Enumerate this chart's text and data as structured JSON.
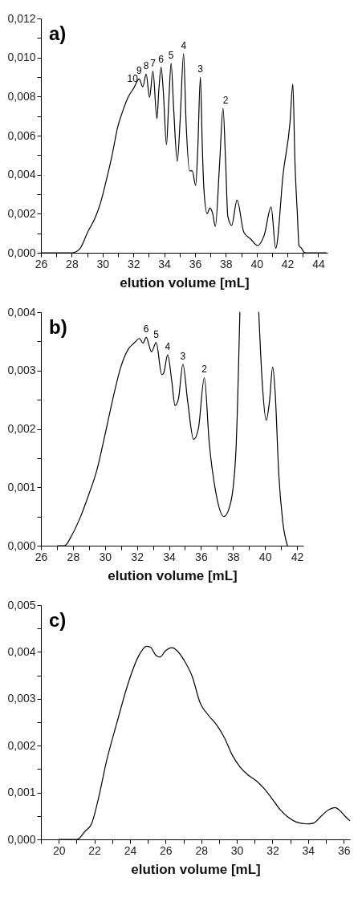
{
  "chart_data": [
    {
      "type": "line",
      "xlabel": "elution volume [mL]",
      "color": "#000000",
      "marker": "none",
      "line_style": "solid",
      "xlim": [
        26,
        44.6
      ],
      "xticks": [
        26,
        {
          "value": 27,
          "label": null
        },
        28,
        {
          "value": 29,
          "label": null
        },
        30,
        {
          "value": 31,
          "label": null
        },
        32,
        {
          "value": 33,
          "label": null
        },
        34,
        {
          "value": 35,
          "label": null
        },
        36,
        {
          "value": 37,
          "label": null
        },
        38,
        {
          "value": 39,
          "label": null
        },
        40,
        {
          "value": 41,
          "label": null
        },
        42,
        {
          "value": 43,
          "label": null
        },
        44
      ],
      "ylim": [
        0,
        0.012
      ],
      "yticks": [
        {
          "value": 0,
          "label": "0,000"
        },
        {
          "value": 0.001,
          "label": null
        },
        {
          "value": 0.002,
          "label": "0,002"
        },
        {
          "value": 0.003,
          "label": null
        },
        {
          "value": 0.004,
          "label": "0,004"
        },
        {
          "value": 0.005,
          "label": null
        },
        {
          "value": 0.006,
          "label": "0,006"
        },
        {
          "value": 0.007,
          "label": null
        },
        {
          "value": 0.008,
          "label": "0,008"
        },
        {
          "value": 0.009,
          "label": null
        },
        {
          "value": 0.01,
          "label": "0,010"
        },
        {
          "value": 0.011,
          "label": null
        },
        {
          "value": 0.012,
          "label": "0,012"
        }
      ],
      "x": [
        26,
        27.8,
        28,
        28.5,
        29.03,
        29.56,
        29.92,
        30.27,
        30.62,
        30.97,
        31.33,
        31.68,
        32.03,
        32.38,
        32.61,
        32.83,
        33.05,
        33.27,
        33.53,
        33.65,
        33.8,
        33.94,
        34.15,
        34.29,
        34.45,
        34.62,
        34.85,
        35.03,
        35.26,
        35.42,
        35.65,
        35.82,
        36.04,
        36.18,
        36.35,
        36.48,
        36.58,
        36.79,
        36.97,
        37.15,
        37.32,
        37.6,
        37.82,
        37.99,
        38.13,
        38.38,
        38.73,
        39.17,
        39.62,
        40.06,
        40.5,
        40.94,
        41.24,
        41.73,
        42.17,
        42.35,
        42.49,
        42.65,
        42.75,
        42.88,
        43.14,
        44.52
      ],
      "values": [
        0,
        0,
        0,
        0.00018,
        0.00105,
        0.00187,
        0.0027,
        0.0038,
        0.005,
        0.0064,
        0.0073,
        0.008,
        0.00844,
        0.0089,
        0.0085,
        0.00915,
        0.00796,
        0.0093,
        0.00687,
        0.0083,
        0.0095,
        0.0083,
        0.00553,
        0.0076,
        0.0097,
        0.0073,
        0.00468,
        0.0067,
        0.0102,
        0.0067,
        0.0042,
        0.0042,
        0.00345,
        0.0053,
        0.009,
        0.0053,
        0.00324,
        0.002,
        0.0023,
        0.002,
        0.00135,
        0.0046,
        0.0074,
        0.0046,
        0.00187,
        0.0014,
        0.0027,
        0.00105,
        0.0007,
        0.00037,
        0.00092,
        0.00235,
        0.00023,
        0.0041,
        0.0067,
        0.00865,
        0.0046,
        0.0019,
        0.00037,
        0.00026,
        0,
        0
      ],
      "annotations": [
        "a)",
        {
          "text": "10",
          "x": 31.95,
          "y": 0.0085
        },
        {
          "text": "9",
          "x": 32.38,
          "y": 0.0089
        },
        {
          "text": "8",
          "x": 32.83,
          "y": 0.00915
        },
        {
          "text": "7",
          "x": 33.27,
          "y": 0.0093
        },
        {
          "text": "6",
          "x": 33.8,
          "y": 0.0095
        },
        {
          "text": "5",
          "x": 34.45,
          "y": 0.0097
        },
        {
          "text": "4",
          "x": 35.26,
          "y": 0.0102
        },
        {
          "text": "3",
          "x": 36.35,
          "y": 0.009
        },
        {
          "text": "2",
          "x": 37.99,
          "y": 0.0074
        }
      ]
    },
    {
      "type": "line",
      "xlabel": "elution volume [mL]",
      "color": "#000000",
      "marker": "none",
      "line_style": "solid",
      "xlim": [
        26,
        42.4
      ],
      "xticks": [
        26,
        {
          "value": 27,
          "label": null
        },
        28,
        {
          "value": 29,
          "label": null
        },
        30,
        {
          "value": 31,
          "label": null
        },
        32,
        {
          "value": 33,
          "label": null
        },
        34,
        {
          "value": 35,
          "label": null
        },
        36,
        {
          "value": 37,
          "label": null
        },
        38,
        {
          "value": 39,
          "label": null
        },
        40,
        {
          "value": 41,
          "label": null
        },
        42
      ],
      "ylim": [
        0,
        0.004
      ],
      "yticks": [
        {
          "value": 0,
          "label": "0,000"
        },
        {
          "value": 0.0005,
          "label": null
        },
        {
          "value": 0.001,
          "label": "0,001"
        },
        {
          "value": 0.0015,
          "label": null
        },
        {
          "value": 0.002,
          "label": "0,002"
        },
        {
          "value": 0.0025,
          "label": null
        },
        {
          "value": 0.003,
          "label": "0,003"
        },
        {
          "value": 0.0035,
          "label": null
        },
        {
          "value": 0.004,
          "label": "0,004"
        }
      ],
      "x": [
        27.05,
        27.47,
        27.97,
        28.48,
        28.98,
        29.48,
        29.98,
        30.49,
        30.99,
        31.49,
        31.82,
        32.16,
        32.38,
        32.58,
        32.91,
        33.2,
        33.55,
        33.66,
        33.92,
        34.17,
        34.38,
        34.59,
        34.87,
        35.17,
        35.54,
        35.84,
        36.21,
        36.51,
        36.93,
        37.43,
        37.85,
        38.18,
        38.43,
        39.0,
        39.61,
        39.82,
        40.08,
        40.28,
        40.48,
        40.64,
        40.86,
        41.11,
        41.4
      ],
      "values": [
        0,
        0,
        0.0002,
        0.0005,
        0.00087,
        0.00128,
        0.00187,
        0.00251,
        0.00306,
        0.00338,
        0.00347,
        0.00355,
        0.00347,
        0.00357,
        0.00332,
        0.00348,
        0.00293,
        0.00295,
        0.00327,
        0.00283,
        0.0024,
        0.00251,
        0.00311,
        0.00247,
        0.00182,
        0.00201,
        0.00288,
        0.00178,
        0.00091,
        0.0005,
        0.00073,
        0.0016,
        0.004,
        null,
        0.004,
        0.00283,
        0.00215,
        0.00247,
        0.00306,
        0.0026,
        0.00123,
        0.00041,
        0
      ],
      "annotations": [
        "b)",
        {
          "text": "6",
          "x": 32.58,
          "y": 0.00357
        },
        {
          "text": "5",
          "x": 33.2,
          "y": 0.00348
        },
        {
          "text": "4",
          "x": 33.92,
          "y": 0.00327
        },
        {
          "text": "3",
          "x": 34.87,
          "y": 0.00311
        },
        {
          "text": "2",
          "x": 36.21,
          "y": 0.00288
        }
      ]
    },
    {
      "type": "line",
      "xlabel": "elution volume [mL]",
      "color": "#000000",
      "marker": "none",
      "line_style": "solid",
      "xlim": [
        19,
        36.35
      ],
      "xticks": [
        {
          "value": 19,
          "label": null
        },
        20,
        {
          "value": 21,
          "label": null
        },
        22,
        {
          "value": 23,
          "label": null
        },
        24,
        {
          "value": 25,
          "label": null
        },
        26,
        {
          "value": 27,
          "label": null
        },
        28,
        {
          "value": 29,
          "label": null
        },
        30,
        {
          "value": 31,
          "label": null
        },
        32,
        {
          "value": 33,
          "label": null
        },
        34,
        {
          "value": 35,
          "label": null
        },
        36
      ],
      "ylim": [
        0,
        0.005
      ],
      "yticks": [
        {
          "value": 0,
          "label": "0,000"
        },
        {
          "value": 0.0005,
          "label": null
        },
        {
          "value": 0.001,
          "label": "0,001"
        },
        {
          "value": 0.0015,
          "label": null
        },
        {
          "value": 0.002,
          "label": "0,002"
        },
        {
          "value": 0.0025,
          "label": null
        },
        {
          "value": 0.003,
          "label": "0,003"
        },
        {
          "value": 0.0035,
          "label": null
        },
        {
          "value": 0.004,
          "label": "0,004"
        },
        {
          "value": 0.0045,
          "label": null
        },
        {
          "value": 0.005,
          "label": "0,005"
        }
      ],
      "x": [
        20,
        21.02,
        21.47,
        21.85,
        22.22,
        22.67,
        23.28,
        23.88,
        24.48,
        24.93,
        25.15,
        25.45,
        25.68,
        25.98,
        26.36,
        26.66,
        27.04,
        27.49,
        27.94,
        28.4,
        28.85,
        29.3,
        29.74,
        30.19,
        30.64,
        31.09,
        31.54,
        31.99,
        32.44,
        32.89,
        33.34,
        33.94,
        34.32,
        34.69,
        35.14,
        35.52,
        35.74,
        36.11,
        36.34
      ],
      "values": [
        0,
        0,
        0.00017,
        0.00034,
        0.00086,
        0.00165,
        0.00251,
        0.00331,
        0.00391,
        0.00412,
        0.0041,
        0.00393,
        0.00389,
        0.00402,
        0.00409,
        0.00402,
        0.00382,
        0.00348,
        0.00291,
        0.00265,
        0.00245,
        0.00217,
        0.0018,
        0.00154,
        0.00137,
        0.00125,
        0.00108,
        0.00086,
        0.00063,
        0.00047,
        0.00037,
        0.00033,
        0.00035,
        0.00048,
        0.00063,
        0.00068,
        0.00063,
        0.00048,
        0.0004
      ],
      "annotations": [
        "c)"
      ]
    }
  ]
}
